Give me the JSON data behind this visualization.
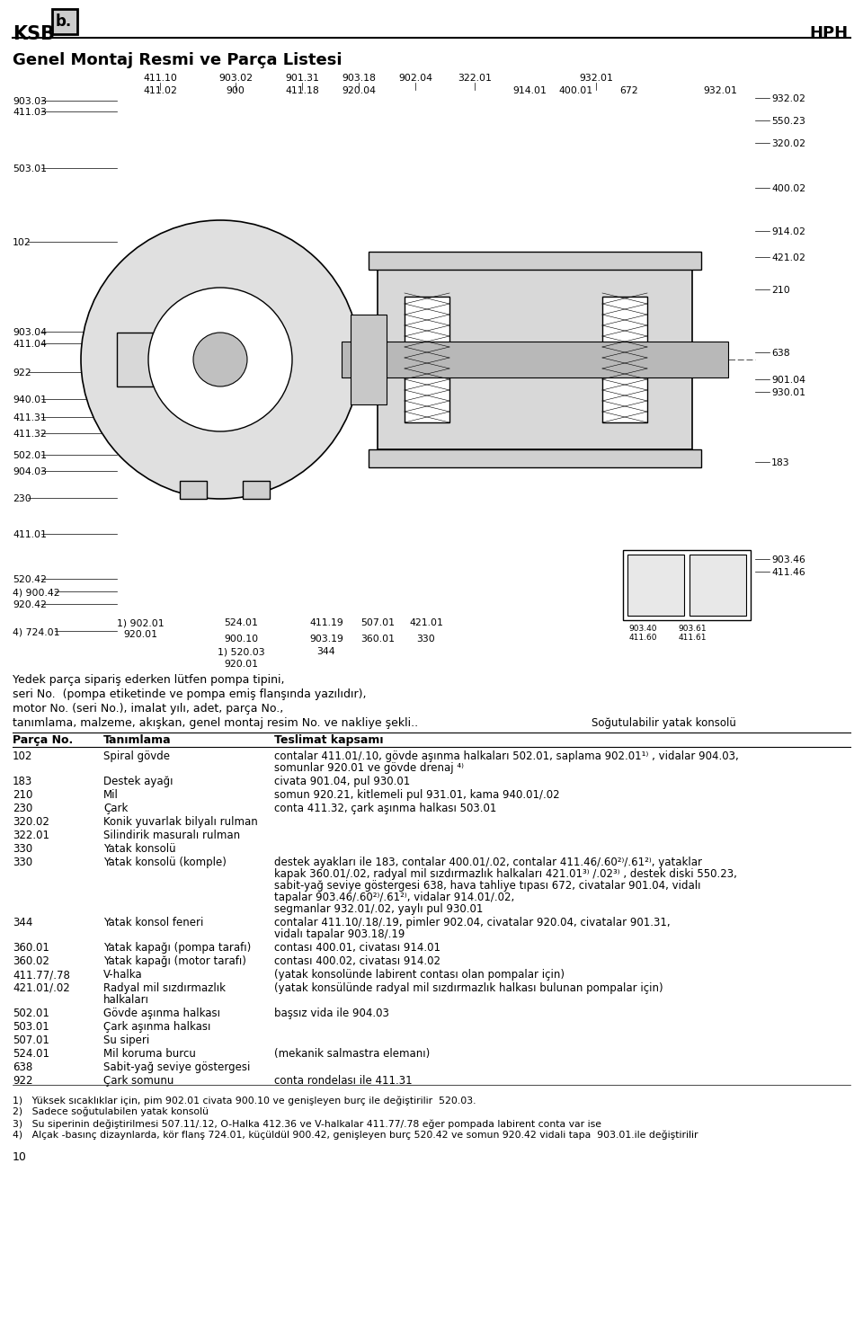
{
  "title": "Genel Montaj Resmi ve Parça Listesi",
  "header_right": "HPH",
  "page_number": "10",
  "subtitle_drawing": "Soğutulabilir yatak konsolü",
  "intro_text": [
    "Yedek parça sipariş ederken lütfen pompa tipini,",
    "seri No.  (pompa etiketinde ve pompa emiş flanşında yazılıdır),",
    "motor No. (seri No.), imalat yılı, adet, parça No.,",
    "tanımlama, malzeme, akışkan, genel montaj resim No. ve nakliye şekli.."
  ],
  "table_headers": [
    "Parça No.",
    "Tanımlama",
    "Teslimat kapsamı"
  ],
  "table_rows": [
    [
      "102",
      "Spiral gövde",
      "contalar 411.01/.10, gövde aşınma halkaları 502.01, saplama 902.01¹⁾ , vidalar 904.03,\nsomunlar 920.01 ve gövde drenaj ⁴⁾"
    ],
    [
      "183",
      "Destek ayağı",
      "civata 901.04, pul 930.01"
    ],
    [
      "210",
      "Mil",
      "somun 920.21, kitlemeli pul 931.01, kama 940.01/.02"
    ],
    [
      "230",
      "Çark",
      "conta 411.32, çark aşınma halkası 503.01"
    ],
    [
      "320.02",
      "Konik yuvarlak bilyalı rulman",
      ""
    ],
    [
      "322.01",
      "Silindirik masuralı rulman",
      ""
    ],
    [
      "330",
      "Yatak konsolü",
      ""
    ],
    [
      "330",
      "Yatak konsolü (komple)",
      "destek ayakları ile 183, contalar 400.01/.02, contalar 411.46/.60²⁾/.61²⁾, yataklar\nkapak 360.01/.02, radyal mil sızdırmazlık halkaları 421.01³⁾ /.02³⁾ , destek diski 550.23,\nsabit-yağ seviye göstergesi 638, hava tahliye tıpası 672, civatalar 901.04, vidalı\ntapalar 903.46/.60²⁾/.61²⁾, vidalar 914.01/.02,\nsegmanlar 932.01/.02, yaylı pul 930.01"
    ],
    [
      "344",
      "Yatak konsol feneri",
      "contalar 411.10/.18/.19, pimler 902.04, civatalar 920.04, civatalar 901.31,\nvidalı tapalar 903.18/.19"
    ],
    [
      "360.01",
      "Yatak kapağı (pompa tarafı)",
      "contası 400.01, civatası 914.01"
    ],
    [
      "360.02",
      "Yatak kapağı (motor tarafı)",
      "contası 400.02, civatası 914.02"
    ],
    [
      "411.77/.78",
      "V-halka",
      "(yatak konsolünde labirent contası olan pompalar için)"
    ],
    [
      "421.01/.02",
      "Radyal mil sızdırmazlık\nhalkaları",
      "(yatak konsülünde radyal mil sızdırmazlık halkası bulunan pompalar için)"
    ],
    [
      "502.01",
      "Gövde aşınma halkası",
      "başsız vida ile 904.03"
    ],
    [
      "503.01",
      "Çark aşınma halkası",
      ""
    ],
    [
      "507.01",
      "Su siperi",
      ""
    ],
    [
      "524.01",
      "Mil koruma burcu",
      "(mekanik salmastra elemanı)"
    ],
    [
      "638",
      "Sabit-yağ seviye göstergesi",
      ""
    ],
    [
      "922",
      "Çark somunu",
      "conta rondelası ile 411.31"
    ]
  ],
  "footnotes": [
    "1)   Yüksek sıcaklıklar için, pim 902.01 civata 900.10 ve genişleyen burç ile değiştirilir  520.03.",
    "2)   Sadece soğutulabilen yatak konsolü",
    "3)   Su siperinin değiştirilmesi 507.11/.12, O-Halka 412.36 ve V-halkalar 411.77/.78 eğer pompada labirent conta var ise",
    "4)   Alçak -basınç dizaynlarda, kör flanş 724.01, küçüldül 900.42, genişleyen burç 520.42 ve somun 920.42 vidali tapa  903.01.ile değiştirilir"
  ],
  "bg_color": "#ffffff",
  "text_color": "#000000"
}
